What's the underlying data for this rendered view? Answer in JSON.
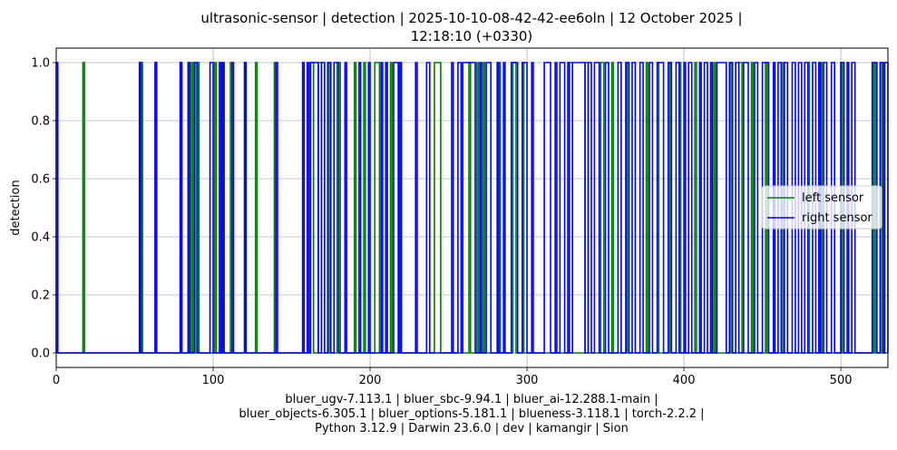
{
  "chart_data": {
    "type": "line",
    "title_lines": [
      "ultrasonic-sensor | detection | 2025-10-10-08-42-42-ee6oln | 12 October 2025 |",
      "12:18:10 (+0330)"
    ],
    "xlabel_lines": [
      "bluer_ugv-7.113.1 | bluer_sbc-9.94.1 | bluer_ai-12.288.1-main |",
      "bluer_objects-6.305.1 | bluer_options-5.181.1 | blueness-3.118.1 | torch-2.2.2 |",
      "Python 3.12.9 | Darwin 23.6.0 | dev | kamangir | Sion"
    ],
    "ylabel": "detection",
    "xlim": [
      0,
      530
    ],
    "ylim": [
      -0.05,
      1.05
    ],
    "xticks": [
      0,
      100,
      200,
      300,
      400,
      500
    ],
    "xtick_labels": [
      "0",
      "100",
      "200",
      "300",
      "400",
      "500"
    ],
    "yticks": [
      0.0,
      0.2,
      0.4,
      0.6,
      0.8,
      1.0
    ],
    "ytick_labels": [
      "0.0",
      "0.2",
      "0.4",
      "0.6",
      "0.8",
      "1.0"
    ],
    "grid": true,
    "legend_position": "center-right",
    "series": [
      {
        "name": "left sensor",
        "color": "#008000",
        "step_intervals": [
          [
            17,
            18
          ],
          [
            54,
            55
          ],
          [
            63,
            64
          ],
          [
            79,
            80
          ],
          [
            85,
            86
          ],
          [
            87,
            89
          ],
          [
            90,
            91
          ],
          [
            101,
            102
          ],
          [
            105,
            106
          ],
          [
            111,
            112
          ],
          [
            120,
            121
          ],
          [
            127,
            128
          ],
          [
            139,
            140
          ],
          [
            162,
            164
          ],
          [
            167,
            169
          ],
          [
            173,
            174
          ],
          [
            179,
            181
          ],
          [
            190,
            191
          ],
          [
            196,
            197
          ],
          [
            203,
            206
          ],
          [
            213,
            214
          ],
          [
            218,
            219
          ],
          [
            241,
            245
          ],
          [
            263,
            264
          ],
          [
            268,
            269
          ],
          [
            272,
            273
          ],
          [
            282,
            283
          ],
          [
            291,
            293
          ],
          [
            297,
            298
          ],
          [
            327,
            329
          ],
          [
            337,
            339
          ],
          [
            347,
            349
          ],
          [
            354,
            355
          ],
          [
            363,
            364
          ],
          [
            376,
            377
          ],
          [
            383,
            384
          ],
          [
            391,
            392
          ],
          [
            397,
            398
          ],
          [
            407,
            408
          ],
          [
            419,
            420
          ],
          [
            430,
            431
          ],
          [
            435,
            437
          ],
          [
            443,
            444
          ],
          [
            452,
            453
          ],
          [
            463,
            464
          ],
          [
            479,
            480
          ],
          [
            486,
            488
          ],
          [
            500,
            501
          ],
          [
            521,
            522
          ],
          [
            526,
            527
          ]
        ]
      },
      {
        "name": "right sensor",
        "color": "#0000ff",
        "step_intervals": [
          [
            0,
            1
          ],
          [
            53,
            54
          ],
          [
            63,
            64
          ],
          [
            79,
            80
          ],
          [
            84,
            85
          ],
          [
            88,
            90
          ],
          [
            98,
            100
          ],
          [
            104,
            105
          ],
          [
            106,
            107
          ],
          [
            112,
            113
          ],
          [
            120,
            121
          ],
          [
            140,
            141
          ],
          [
            157,
            158
          ],
          [
            160,
            161
          ],
          [
            162,
            167
          ],
          [
            169,
            171
          ],
          [
            173,
            175
          ],
          [
            177,
            180
          ],
          [
            184,
            185
          ],
          [
            193,
            194
          ],
          [
            199,
            200
          ],
          [
            207,
            208
          ],
          [
            210,
            211
          ],
          [
            215,
            218
          ],
          [
            219,
            220
          ],
          [
            229,
            230
          ],
          [
            236,
            238
          ],
          [
            252,
            253
          ],
          [
            256,
            258
          ],
          [
            259,
            267
          ],
          [
            270,
            271
          ],
          [
            274,
            277
          ],
          [
            281,
            282
          ],
          [
            285,
            286
          ],
          [
            290,
            294
          ],
          [
            297,
            300
          ],
          [
            303,
            304
          ],
          [
            311,
            315
          ],
          [
            318,
            319
          ],
          [
            321,
            324
          ],
          [
            326,
            327
          ],
          [
            329,
            337
          ],
          [
            339,
            341
          ],
          [
            343,
            346
          ],
          [
            350,
            352
          ],
          [
            358,
            360
          ],
          [
            363,
            365
          ],
          [
            367,
            369
          ],
          [
            372,
            374
          ],
          [
            378,
            380
          ],
          [
            383,
            387
          ],
          [
            390,
            392
          ],
          [
            395,
            397
          ],
          [
            400,
            401
          ],
          [
            403,
            405
          ],
          [
            410,
            411
          ],
          [
            413,
            415
          ],
          [
            417,
            418
          ],
          [
            421,
            427
          ],
          [
            429,
            431
          ],
          [
            433,
            435
          ],
          [
            438,
            441
          ],
          [
            445,
            447
          ],
          [
            450,
            454
          ],
          [
            457,
            458
          ],
          [
            460,
            462
          ],
          [
            464,
            466
          ],
          [
            469,
            471
          ],
          [
            473,
            475
          ],
          [
            477,
            479
          ],
          [
            482,
            484
          ],
          [
            486,
            487
          ],
          [
            489,
            491
          ],
          [
            494,
            496
          ],
          [
            500,
            502
          ],
          [
            504,
            505
          ],
          [
            507,
            509
          ],
          [
            520,
            523
          ],
          [
            525,
            527
          ],
          [
            528,
            530
          ]
        ]
      }
    ]
  }
}
